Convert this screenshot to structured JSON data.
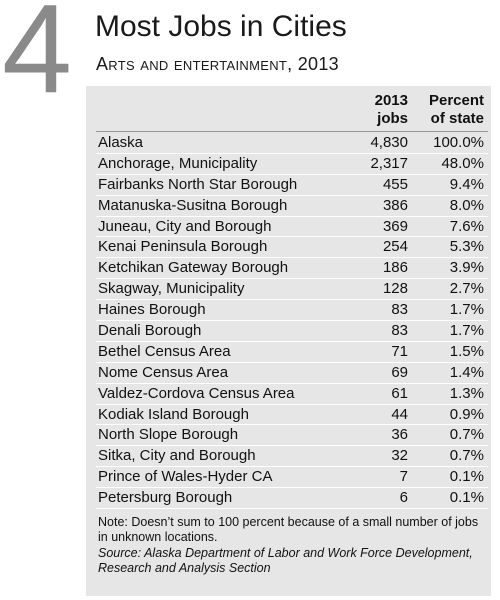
{
  "rank": "4",
  "title": "Most Jobs in Cities",
  "subtitle": "Arts and entertainment, 2013",
  "columns": {
    "jobs": [
      "2013",
      "jobs"
    ],
    "percent": [
      "Percent",
      "of state"
    ]
  },
  "rows": [
    {
      "place": "Alaska",
      "jobs": "4,830",
      "percent": "100.0%"
    },
    {
      "place": "Anchorage, Municipality",
      "jobs": "2,317",
      "percent": "48.0%"
    },
    {
      "place": "Fairbanks North Star Borough",
      "jobs": "455",
      "percent": "9.4%"
    },
    {
      "place": "Matanuska-Susitna  Borough",
      "jobs": "386",
      "percent": "8.0%"
    },
    {
      "place": "Juneau, City and Borough",
      "jobs": "369",
      "percent": "7.6%"
    },
    {
      "place": "Kenai Peninsula Borough",
      "jobs": "254",
      "percent": "5.3%"
    },
    {
      "place": "Ketchikan Gateway Borough",
      "jobs": "186",
      "percent": "3.9%"
    },
    {
      "place": "Skagway, Municipality",
      "jobs": "128",
      "percent": "2.7%"
    },
    {
      "place": "Haines Borough",
      "jobs": "83",
      "percent": "1.7%"
    },
    {
      "place": "Denali Borough",
      "jobs": "83",
      "percent": "1.7%"
    },
    {
      "place": "Bethel Census Area",
      "jobs": "71",
      "percent": "1.5%"
    },
    {
      "place": "Nome Census Area",
      "jobs": "69",
      "percent": "1.4%"
    },
    {
      "place": "Valdez-Cordova Census Area",
      "jobs": "61",
      "percent": "1.3%"
    },
    {
      "place": "Kodiak Island Borough",
      "jobs": "44",
      "percent": "0.9%"
    },
    {
      "place": "North Slope Borough",
      "jobs": "36",
      "percent": "0.7%"
    },
    {
      "place": "Sitka, City and Borough",
      "jobs": "32",
      "percent": "0.7%"
    },
    {
      "place": "Prince of Wales-Hyder CA",
      "jobs": "7",
      "percent": "0.1%"
    },
    {
      "place": "Petersburg Borough",
      "jobs": "6",
      "percent": "0.1%"
    }
  ],
  "note": "Note: Doesn’t sum to 100 percent because of a small number of jobs in unknown locations.",
  "source": "Source: Alaska Department of Labor and Work Force Development, Research and Analysis Section",
  "colors": {
    "rank_number": "#8a8a8a",
    "panel_background": "#e6e6e6",
    "row_divider": "#ffffff"
  }
}
